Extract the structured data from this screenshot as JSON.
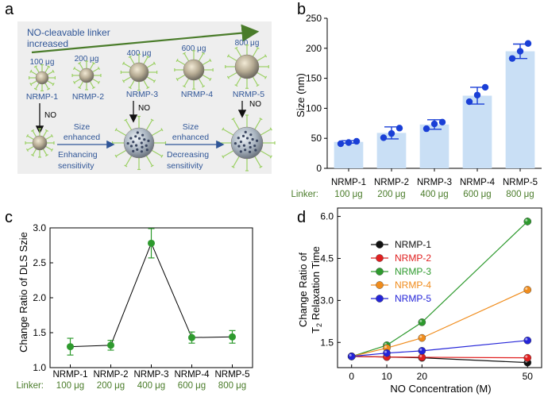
{
  "panel_letters": [
    "a",
    "b",
    "c",
    "d"
  ],
  "schematic": {
    "arrow_label_line1": "NO-cleavable linker",
    "arrow_label_line2": "increased",
    "particles": [
      {
        "dose": "100 μg",
        "name": "NRMP-1"
      },
      {
        "dose": "200 μg",
        "name": "NRMP-2"
      },
      {
        "dose": "400 μg",
        "name": "NRMP-3"
      },
      {
        "dose": "600 μg",
        "name": "NRMP-4"
      },
      {
        "dose": "800 μg",
        "name": "NRMP-5"
      }
    ],
    "no_label": "NO",
    "step1": {
      "line1": "Size",
      "line2": "enhanced",
      "line3": "Enhancing",
      "line4": "sensitivity"
    },
    "step2": {
      "line1": "Size",
      "line2": "enhanced",
      "line3": "Decreasing",
      "line4": "sensitivity"
    },
    "colors": {
      "box": "#eeeeee",
      "green": "#4a7c2a",
      "blue": "#2f5597"
    }
  },
  "chart_data": [
    {
      "panel": "b",
      "type": "bar",
      "categories": [
        "NRMP-1",
        "NRMP-2",
        "NRMP-3",
        "NRMP-4",
        "NRMP-5"
      ],
      "linker_label": "Linker:",
      "linker_values": [
        "100 μg",
        "200 μg",
        "400 μg",
        "600 μg",
        "800 μg"
      ],
      "values": [
        44,
        59,
        73,
        121,
        195
      ],
      "errors": [
        2,
        10,
        8,
        14,
        12
      ],
      "points": [
        [
          41,
          43,
          45
        ],
        [
          51,
          58,
          67
        ],
        [
          66,
          74,
          77
        ],
        [
          111,
          122,
          135
        ],
        [
          183,
          195,
          208
        ]
      ],
      "ylabel": "Size (nm)",
      "ylim": [
        0,
        250
      ],
      "yticks": [
        "0",
        "50",
        "100",
        "150",
        "200",
        "250"
      ],
      "colors": {
        "bar": "#c9dff5",
        "marker": "#1a3fd6"
      }
    },
    {
      "panel": "c",
      "type": "line",
      "categories": [
        "NRMP-1",
        "NRMP-2",
        "NRMP-3",
        "NRMP-4",
        "NRMP-5"
      ],
      "linker_label": "Linker:",
      "linker_values": [
        "100 μg",
        "200 μg",
        "400 μg",
        "600 μg",
        "800 μg"
      ],
      "values": [
        1.3,
        1.32,
        2.78,
        1.43,
        1.44
      ],
      "errors": [
        0.12,
        0.07,
        0.21,
        0.08,
        0.09
      ],
      "ylabel": "Change Ratio of DLS Szie",
      "ylim": [
        1.0,
        3.0
      ],
      "yticks": [
        "1.0",
        "1.5",
        "2.0",
        "2.5",
        "3.0"
      ],
      "colors": {
        "marker": "#2e9a2e",
        "line": "#000000"
      }
    },
    {
      "panel": "d",
      "type": "line",
      "x": [
        0,
        10,
        20,
        50
      ],
      "xticks": [
        "0",
        "10",
        "20",
        "50"
      ],
      "xlabel": "NO Concentration (\u001bM)",
      "ylabel_line1": "Change Ratio of",
      "ylabel_line2": "T",
      "ylabel_sub": "2",
      "ylabel_line2_rest": " Relaxation Time",
      "ylim": [
        0.6,
        6.3
      ],
      "yticks": [
        "1.5",
        "3.0",
        "4.5",
        "6.0"
      ],
      "series": [
        {
          "name": "NRMP-1",
          "values": [
            1.0,
            0.98,
            0.95,
            0.78
          ],
          "errors": [
            0.03,
            0.03,
            0.03,
            0.05
          ],
          "color": "#111111"
        },
        {
          "name": "NRMP-2",
          "values": [
            1.0,
            0.98,
            0.97,
            0.95
          ],
          "errors": [
            0.03,
            0.03,
            0.03,
            0.04
          ],
          "color": "#e02020"
        },
        {
          "name": "NRMP-3",
          "values": [
            1.0,
            1.4,
            2.22,
            5.82
          ],
          "errors": [
            0.03,
            0.05,
            0.06,
            0.14
          ],
          "color": "#2e9a2e"
        },
        {
          "name": "NRMP-4",
          "values": [
            1.0,
            1.3,
            1.66,
            3.38
          ],
          "errors": [
            0.03,
            0.05,
            0.06,
            0.12
          ],
          "color": "#f08c1c"
        },
        {
          "name": "NRMP-5",
          "values": [
            1.0,
            1.12,
            1.2,
            1.57
          ],
          "errors": [
            0.03,
            0.04,
            0.04,
            0.06
          ],
          "color": "#2424d8"
        }
      ]
    }
  ]
}
